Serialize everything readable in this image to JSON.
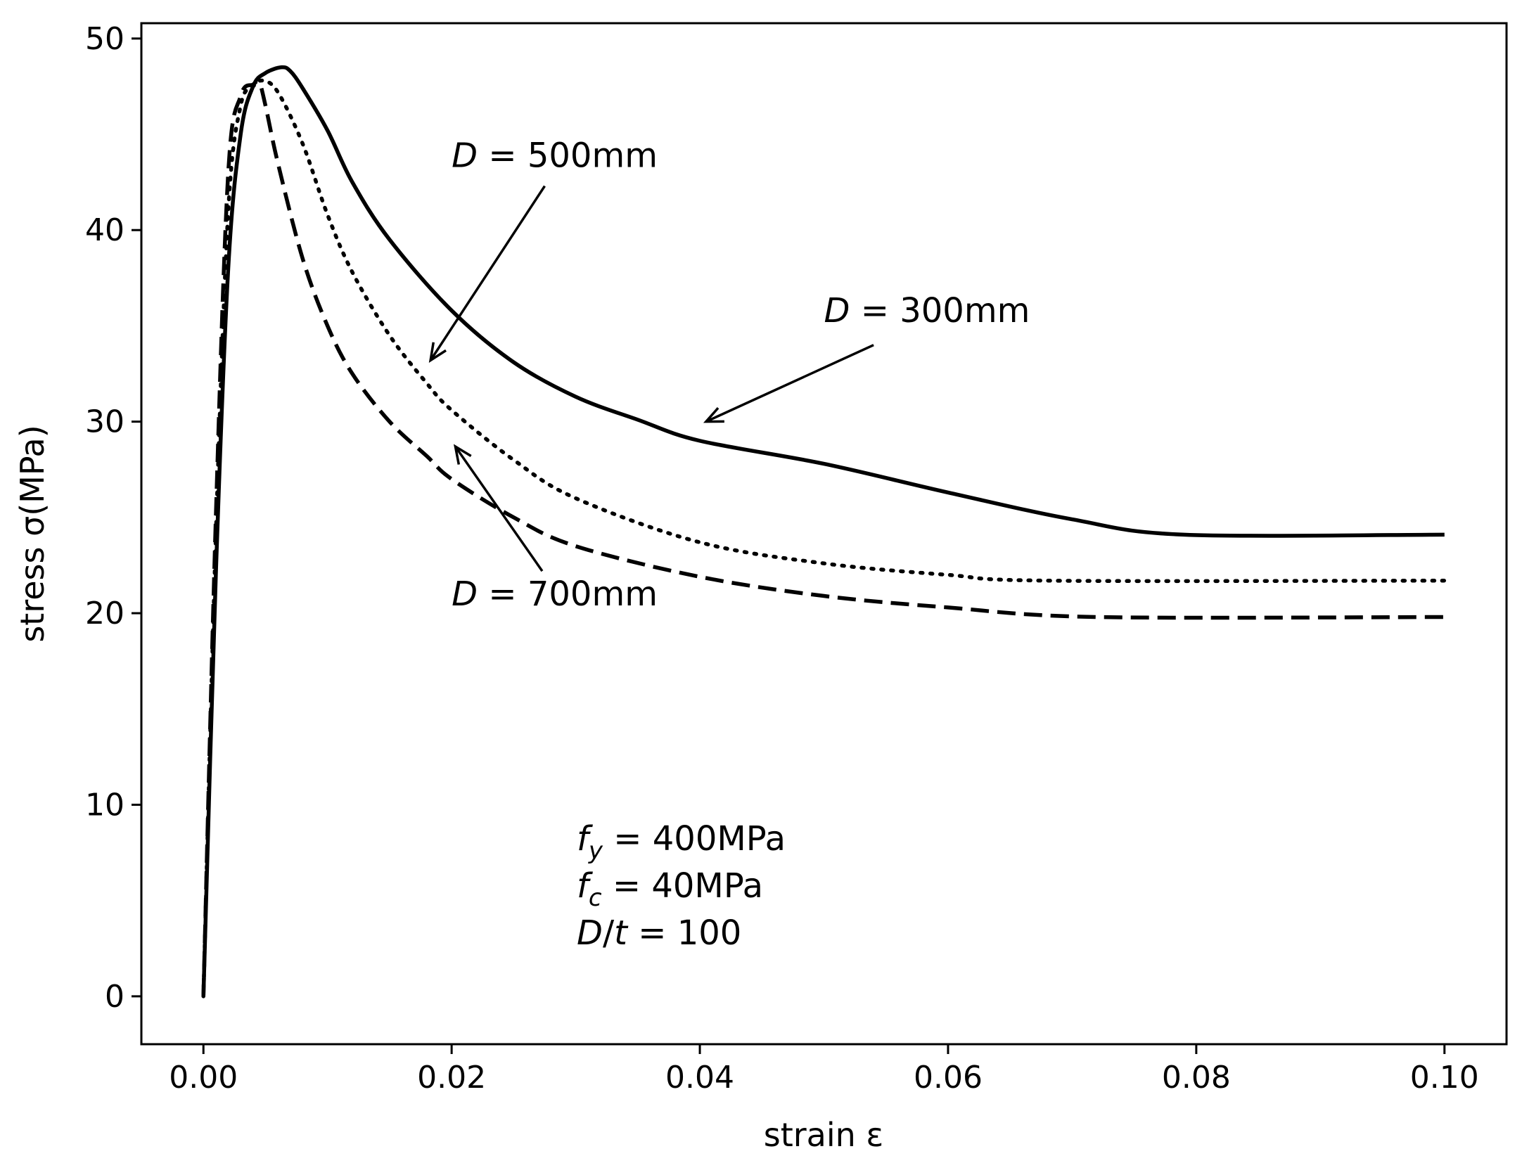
{
  "chart_data": {
    "type": "line",
    "title": "",
    "xlabel": "strain ε",
    "ylabel": "stress σ(MPa)",
    "xlim": [
      -0.005,
      0.105
    ],
    "ylim": [
      -2.5,
      50.8
    ],
    "grid": false,
    "x_ticks": [
      0.0,
      0.02,
      0.04,
      0.06,
      0.08,
      0.1
    ],
    "x_tick_labels": [
      "0.00",
      "0.02",
      "0.04",
      "0.06",
      "0.08",
      "0.10"
    ],
    "y_ticks": [
      0,
      10,
      20,
      30,
      40,
      50
    ],
    "y_tick_labels": [
      "0",
      "10",
      "20",
      "30",
      "40",
      "50"
    ],
    "series": [
      {
        "name": "D = 300mm",
        "style": "solid",
        "color": "#000000",
        "x": [
          0,
          0.001,
          0.002,
          0.003,
          0.004,
          0.005,
          0.0063,
          0.007,
          0.008,
          0.01,
          0.012,
          0.015,
          0.02,
          0.025,
          0.03,
          0.035,
          0.04,
          0.05,
          0.06,
          0.07,
          0.079,
          0.1
        ],
        "y": [
          0,
          22,
          38,
          45,
          47.5,
          48.2,
          48.5,
          48.3,
          47.4,
          45.2,
          42.5,
          39.5,
          35.8,
          33.1,
          31.3,
          30.1,
          29.0,
          27.8,
          26.3,
          24.9,
          24.1,
          24.1
        ]
      },
      {
        "name": "D = 500mm",
        "style": "dotted",
        "color": "#000000",
        "x": [
          0,
          0.001,
          0.002,
          0.003,
          0.004,
          0.0048,
          0.006,
          0.008,
          0.01,
          0.012,
          0.015,
          0.018,
          0.02,
          0.025,
          0.03,
          0.04,
          0.05,
          0.06,
          0.068,
          0.1
        ],
        "y": [
          0,
          24,
          41,
          46.5,
          47.5,
          47.8,
          47.2,
          44.5,
          40.8,
          37.8,
          34.5,
          32.0,
          30.6,
          28.0,
          26.0,
          23.7,
          22.6,
          22.0,
          21.7,
          21.7
        ]
      },
      {
        "name": "D = 700mm",
        "style": "dashed",
        "color": "#000000",
        "x": [
          0,
          0.001,
          0.002,
          0.003,
          0.004,
          0.0045,
          0.005,
          0.006,
          0.008,
          0.01,
          0.012,
          0.015,
          0.018,
          0.02,
          0.025,
          0.03,
          0.04,
          0.05,
          0.06,
          0.072,
          0.1
        ],
        "y": [
          0,
          25,
          43,
          47,
          47.6,
          47.7,
          46.5,
          43.5,
          38.5,
          35.0,
          32.5,
          30.0,
          28.2,
          27.0,
          25.0,
          23.5,
          21.9,
          20.9,
          20.3,
          19.8,
          19.8
        ]
      }
    ],
    "annotations": [
      {
        "id": "d500",
        "italic_text": "D",
        "rest_text": " = 500mm",
        "text_x": 0.02,
        "text_y": 43.3,
        "arrow_from_x": 0.0275,
        "arrow_from_y": 42.3,
        "arrow_to_x": 0.0183,
        "arrow_to_y": 33.2
      },
      {
        "id": "d300",
        "italic_text": "D",
        "rest_text": " = 300mm",
        "text_x": 0.05,
        "text_y": 35.2,
        "arrow_from_x": 0.054,
        "arrow_from_y": 34.0,
        "arrow_to_x": 0.0405,
        "arrow_to_y": 30.0
      },
      {
        "id": "d700",
        "italic_text": "D",
        "rest_text": " = 700mm",
        "text_x": 0.02,
        "text_y": 20.4,
        "arrow_from_x": 0.0273,
        "arrow_from_y": 22.2,
        "arrow_to_x": 0.0203,
        "arrow_to_y": 28.7
      }
    ],
    "params": {
      "fy_symbol": "f",
      "fy_subscript": "y",
      "fy_value": " = 400MPa",
      "fc_symbol": "f",
      "fc_subscript": "c",
      "fc_value": " = 40MPa",
      "dt_italic_d": "D",
      "dt_slash": "/",
      "dt_italic_t": "t",
      "dt_value": " = 100"
    }
  }
}
